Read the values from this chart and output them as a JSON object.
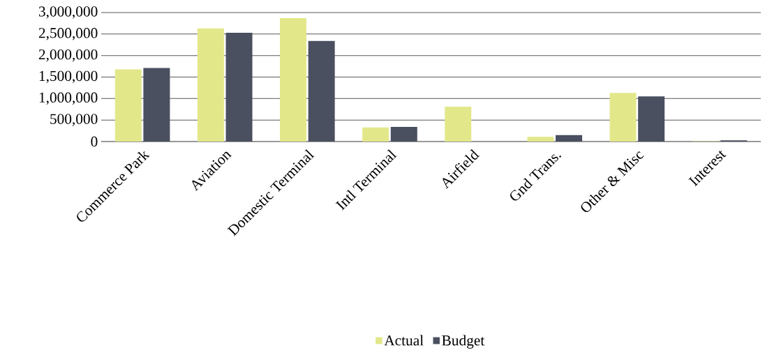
{
  "chart_data": {
    "type": "bar",
    "categories": [
      "Commerce Park",
      "Aviation",
      "Domestic Terminal",
      "Intl Terminal",
      "Airfield",
      "Gnd Trans.",
      "Other & Misc",
      "Interest"
    ],
    "series": [
      {
        "name": "Actual",
        "color": "#e2e88a",
        "values": [
          1680000,
          2630000,
          2870000,
          330000,
          810000,
          110000,
          1130000,
          10000
        ]
      },
      {
        "name": "Budget",
        "color": "#4a5060",
        "values": [
          1710000,
          2530000,
          2340000,
          340000,
          null,
          150000,
          1050000,
          30000
        ]
      }
    ],
    "ylim": [
      0,
      3000000
    ],
    "yticks": [
      {
        "value": 0,
        "label": "0"
      },
      {
        "value": 500000,
        "label": "500,000"
      },
      {
        "value": 1000000,
        "label": "1,000,000"
      },
      {
        "value": 1500000,
        "label": "1,500,000"
      },
      {
        "value": 2000000,
        "label": "2,000,000"
      },
      {
        "value": 2500000,
        "label": "2,500,000"
      },
      {
        "value": 3000000,
        "label": "3,000,000"
      }
    ],
    "grid": "y",
    "legend": "bottom"
  }
}
